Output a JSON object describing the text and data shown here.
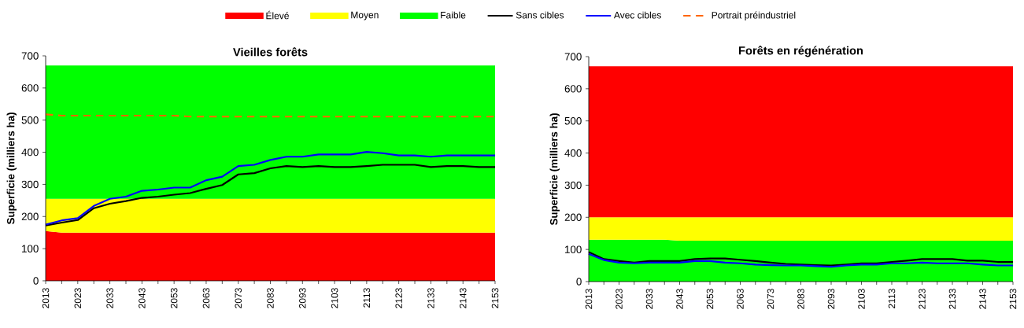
{
  "chart_data": [
    {
      "type": "area",
      "title": "Vieilles forêts",
      "ylabel": "Superficie (milliers ha)",
      "stacked": true,
      "legend": "top",
      "categories": [
        "2013",
        null,
        "2023",
        null,
        "2033",
        null,
        "2043",
        null,
        "2053",
        null,
        "2063",
        null,
        "2073",
        null,
        "2083",
        null,
        "2093",
        null,
        "2103",
        null,
        "2113",
        null,
        "2123",
        null,
        "2133",
        null,
        "2143",
        null,
        "2153"
      ],
      "ylim": [
        0,
        700
      ],
      "yticks": [
        0,
        100,
        200,
        300,
        400,
        500,
        600,
        700
      ],
      "series": [
        {
          "name": "Élevé",
          "color": "#ff0000",
          "values": [
            155,
            150,
            150,
            150,
            150,
            150,
            150,
            150,
            150,
            150,
            150,
            150,
            150,
            150,
            150,
            150,
            150,
            150,
            150,
            150,
            150,
            150,
            150,
            150,
            150,
            150,
            150,
            150,
            150
          ]
        },
        {
          "name": "Moyen",
          "color": "#ffff00",
          "values": [
            100,
            105,
            105,
            105,
            105,
            105,
            105,
            105,
            105,
            105,
            105,
            105,
            105,
            105,
            105,
            105,
            105,
            105,
            105,
            105,
            105,
            105,
            105,
            105,
            105,
            105,
            105,
            105,
            105
          ]
        },
        {
          "name": "Faible",
          "color": "#00ff00",
          "values": [
            415,
            415,
            415,
            415,
            415,
            415,
            415,
            415,
            415,
            415,
            415,
            415,
            415,
            415,
            415,
            415,
            415,
            415,
            415,
            415,
            415,
            415,
            415,
            415,
            415,
            415,
            415,
            415,
            415
          ]
        },
        {
          "name": "Sans cibles",
          "type": "line",
          "color": "#000000",
          "line_style": "solid",
          "values": [
            172,
            181,
            189,
            226,
            240,
            248,
            258,
            262,
            268,
            273,
            286,
            298,
            331,
            335,
            350,
            357,
            354,
            357,
            354,
            354,
            357,
            361,
            361,
            361,
            354,
            357,
            357,
            354,
            354
          ]
        },
        {
          "name": "Avec cibles",
          "type": "line",
          "color": "#0000ff",
          "line_style": "solid",
          "values": [
            175,
            188,
            195,
            233,
            255,
            262,
            280,
            284,
            290,
            290,
            313,
            324,
            357,
            361,
            376,
            386,
            386,
            393,
            393,
            393,
            401,
            397,
            390,
            390,
            386,
            390,
            390,
            390,
            390
          ]
        },
        {
          "name": "Portrait préindustriel",
          "type": "line",
          "color": "#ff6600",
          "line_style": "dashed",
          "values": [
            518,
            514,
            514,
            514,
            514,
            514,
            514,
            514,
            514,
            511,
            511,
            511,
            511,
            511,
            511,
            511,
            511,
            511,
            511,
            511,
            511,
            511,
            511,
            511,
            511,
            511,
            511,
            511,
            511
          ]
        }
      ]
    },
    {
      "type": "area",
      "title": "Forêts en régénération",
      "ylabel": "Superficie (milliers ha)",
      "stacked": true,
      "categories": [
        "2013",
        null,
        "2023",
        null,
        "2033",
        null,
        "2043",
        null,
        "2053",
        null,
        "2063",
        null,
        "2073",
        null,
        "2083",
        null,
        "2093",
        null,
        "2103",
        null,
        "2113",
        null,
        "2123",
        null,
        "2133",
        null,
        "2143",
        null,
        "2153"
      ],
      "ylim": [
        0,
        700
      ],
      "yticks": [
        0,
        100,
        200,
        300,
        400,
        500,
        600,
        700
      ],
      "series": [
        {
          "color": "#00ff00",
          "values": [
            130,
            130,
            130,
            130,
            130,
            130,
            127,
            127,
            127,
            127,
            127,
            127,
            127,
            127,
            127,
            127,
            127,
            127,
            127,
            127,
            127,
            127,
            127,
            127,
            127,
            127,
            127,
            127,
            127
          ]
        },
        {
          "color": "#ffff00",
          "values": [
            70,
            70,
            70,
            70,
            70,
            70,
            73,
            73,
            73,
            73,
            73,
            73,
            73,
            73,
            73,
            73,
            73,
            73,
            73,
            73,
            73,
            73,
            73,
            73,
            73,
            73,
            73,
            73,
            73
          ]
        },
        {
          "color": "#ff0000",
          "values": [
            470,
            470,
            470,
            470,
            470,
            470,
            470,
            470,
            470,
            470,
            470,
            470,
            470,
            470,
            470,
            470,
            470,
            470,
            470,
            470,
            470,
            470,
            470,
            470,
            470,
            470,
            470,
            470,
            470
          ]
        },
        {
          "type": "line",
          "color": "#000000",
          "line_style": "solid",
          "values": [
            92,
            70,
            64,
            59,
            64,
            64,
            64,
            70,
            72,
            72,
            68,
            64,
            59,
            55,
            53,
            51,
            50,
            53,
            57,
            57,
            61,
            65,
            70,
            70,
            70,
            65,
            65,
            61,
            61
          ]
        },
        {
          "type": "line",
          "color": "#0000ff",
          "line_style": "solid",
          "values": [
            86,
            67,
            59,
            57,
            59,
            59,
            59,
            64,
            64,
            59,
            57,
            53,
            51,
            50,
            50,
            48,
            46,
            50,
            53,
            53,
            57,
            57,
            59,
            57,
            57,
            57,
            53,
            50,
            50
          ]
        }
      ]
    }
  ]
}
